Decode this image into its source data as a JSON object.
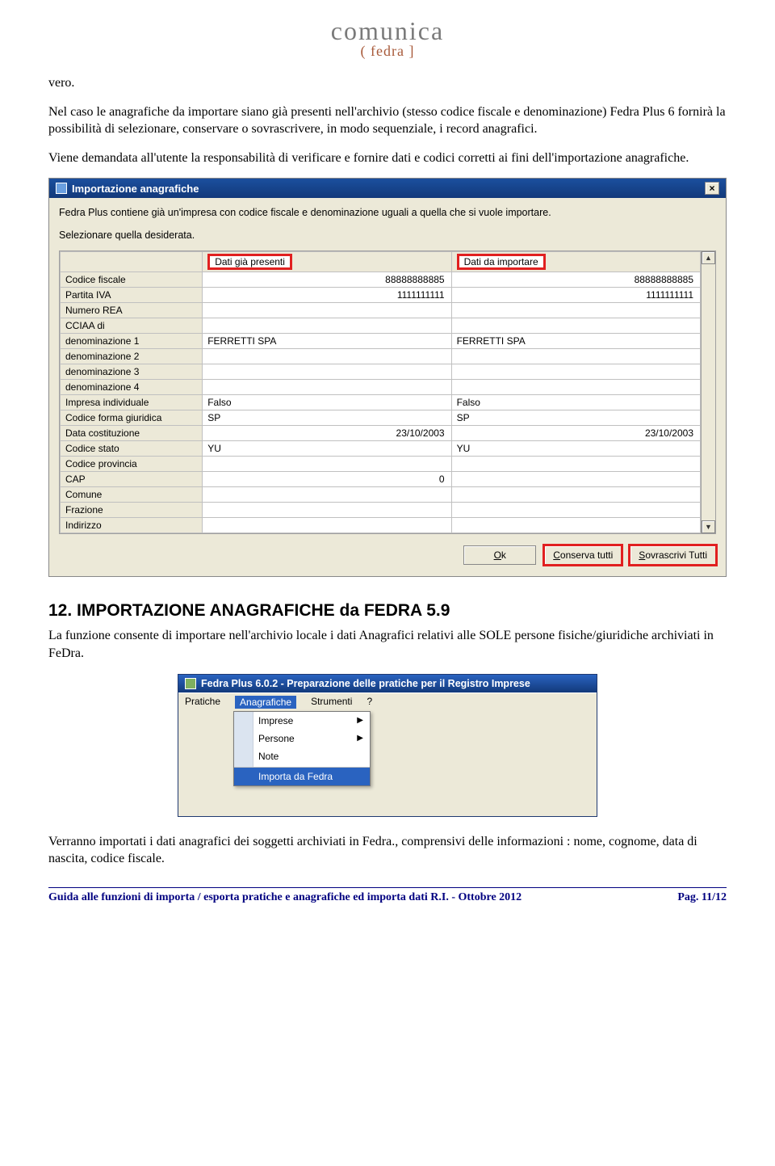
{
  "logo": {
    "top": "comunica",
    "bottom": "( fedra ]"
  },
  "p1": "vero.",
  "p2": "Nel caso le anagrafiche da importare siano già presenti nell'archivio (stesso codice fiscale e denominazione) Fedra Plus 6 fornirà la possibilità di selezionare, conservare o sovrascrivere, in modo sequenziale, i record anagrafici.",
  "p3": "Viene demandata all'utente la responsabilità di verificare e fornire dati e codici corretti ai fini dell'importazione anagrafiche.",
  "dialog1": {
    "title": "Importazione anagrafiche",
    "msg1": "Fedra Plus contiene già un'impresa con codice fiscale e denominazione uguali a quella che si vuole importare.",
    "msg2": "Selezionare quella desiderata.",
    "hdr_present": "Dati già presenti",
    "hdr_import": "Dati da importare",
    "rows": [
      {
        "label": "Codice fiscale",
        "a": "88888888885",
        "b": "88888888885",
        "align": "right"
      },
      {
        "label": "Partita IVA",
        "a": "1111111111",
        "b": "1111111111",
        "align": "right"
      },
      {
        "label": "Numero REA",
        "a": "",
        "b": "",
        "align": "left"
      },
      {
        "label": "CCIAA di",
        "a": "",
        "b": "",
        "align": "left"
      },
      {
        "label": "denominazione 1",
        "a": "FERRETTI SPA",
        "b": "FERRETTI SPA",
        "align": "left"
      },
      {
        "label": "denominazione 2",
        "a": "",
        "b": "",
        "align": "left"
      },
      {
        "label": "denominazione 3",
        "a": "",
        "b": "",
        "align": "left"
      },
      {
        "label": "denominazione 4",
        "a": "",
        "b": "",
        "align": "left"
      },
      {
        "label": "Impresa individuale",
        "a": "Falso",
        "b": "Falso",
        "align": "left"
      },
      {
        "label": "Codice forma giuridica",
        "a": "SP",
        "b": "SP",
        "align": "left"
      },
      {
        "label": "Data costituzione",
        "a": "23/10/2003",
        "b": "23/10/2003",
        "align": "right"
      },
      {
        "label": "Codice stato",
        "a": "YU",
        "b": "YU",
        "align": "left"
      },
      {
        "label": "Codice provincia",
        "a": "",
        "b": "",
        "align": "left"
      },
      {
        "label": "CAP",
        "a": "0",
        "b": "",
        "align": "right"
      },
      {
        "label": "Comune",
        "a": "",
        "b": "",
        "align": "left"
      },
      {
        "label": "Frazione",
        "a": "",
        "b": "",
        "align": "left"
      },
      {
        "label": "Indirizzo",
        "a": "",
        "b": "",
        "align": "left"
      }
    ],
    "btn_ok_u": "O",
    "btn_ok_rest": "k",
    "btn_cons_u": "C",
    "btn_cons_rest": "onserva tutti",
    "btn_sovr_u": "S",
    "btn_sovr_rest": "ovrascrivi Tutti"
  },
  "heading12": "12.  IMPORTAZIONE ANAGRAFICHE da FEDRA 5.9",
  "p4": "La funzione consente di importare nell'archivio locale i dati Anagrafici relativi alle SOLE persone fisiche/giuridiche archiviati in FeDra.",
  "menuwin": {
    "title": "Fedra Plus 6.0.2 - Preparazione delle pratiche per il Registro Imprese",
    "menubar": [
      "Pratiche",
      "Anagrafiche",
      "Strumenti",
      "?"
    ],
    "dropdown": [
      {
        "label": "Imprese",
        "arrow": true
      },
      {
        "label": "Persone",
        "arrow": true
      },
      {
        "label": "Note",
        "arrow": false
      },
      {
        "label": "Importa da Fedra",
        "arrow": false,
        "hover": true,
        "sep": true
      }
    ]
  },
  "p5": "Verranno importati i dati anagrafici dei soggetti archiviati in Fedra., comprensivi delle informazioni : nome, cognome, data di nascita, codice fiscale.",
  "footer": {
    "left": "Guida alle funzioni di importa / esporta pratiche e anagrafiche ed importa dati R.I. - Ottobre 2012",
    "right": "Pag. 11/12"
  }
}
